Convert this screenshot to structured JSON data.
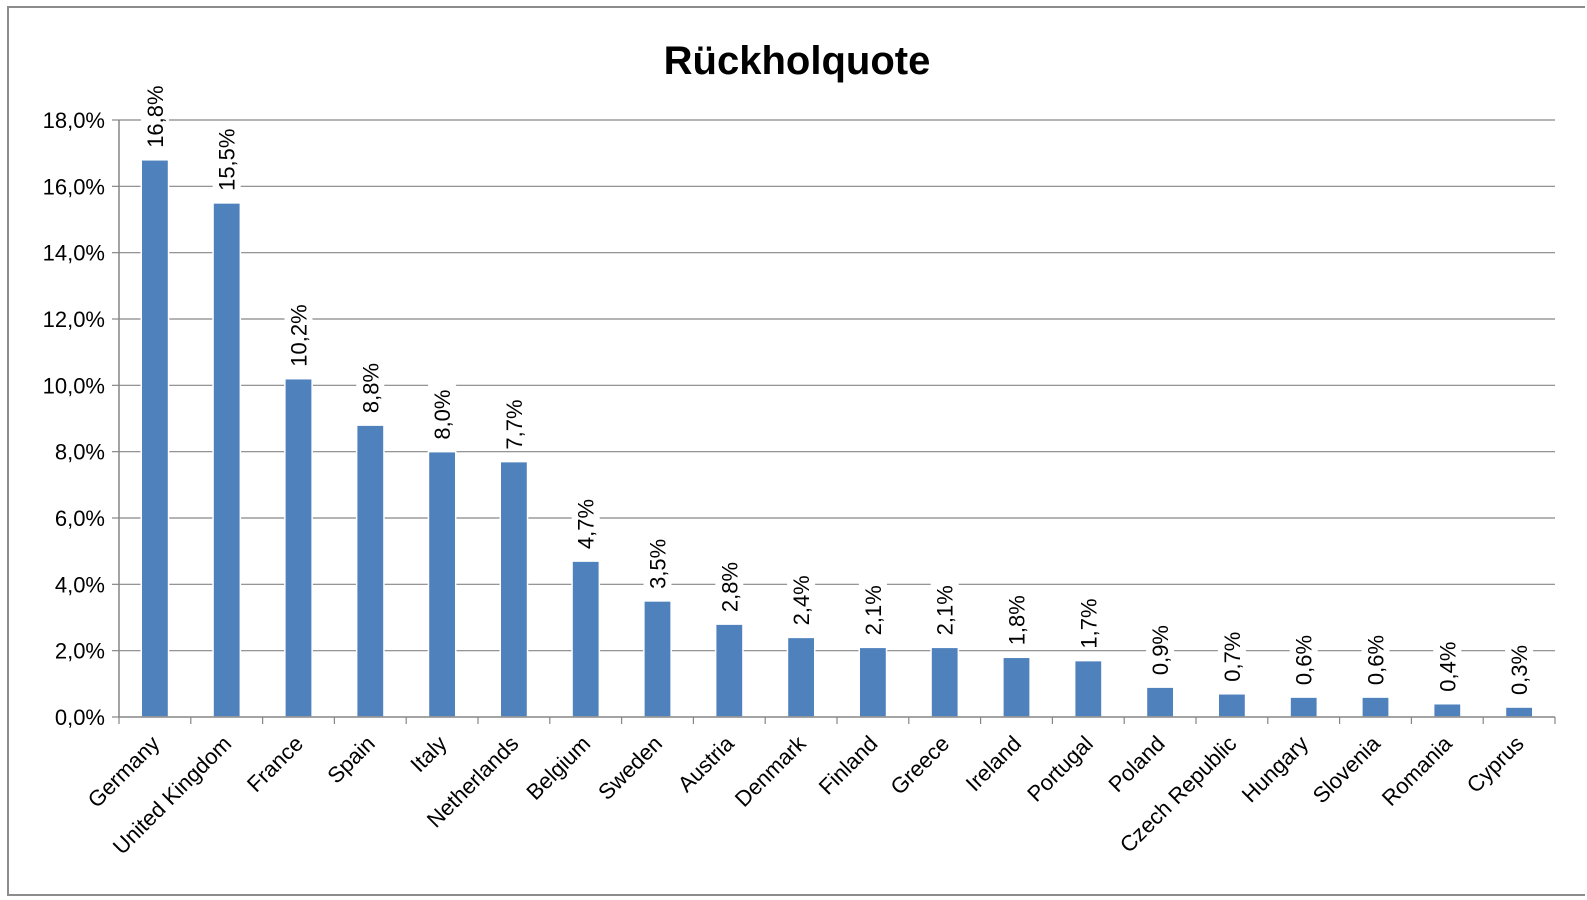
{
  "colors": {
    "bar_fill": "#4f81bd",
    "bar_edge": "#ffffff",
    "gridline": "#868686",
    "text": "#000000"
  },
  "chart_data": {
    "type": "bar",
    "title": "Rückholquote",
    "xlabel": "",
    "ylabel": "",
    "ylim": [
      0,
      18
    ],
    "yticks": [
      "0,0%",
      "2,0%",
      "4,0%",
      "6,0%",
      "8,0%",
      "10,0%",
      "12,0%",
      "14,0%",
      "16,0%",
      "18,0%"
    ],
    "grid": true,
    "legend": "none",
    "categories": [
      "Germany",
      "United Kingdom",
      "France",
      "Spain",
      "Italy",
      "Netherlands",
      "Belgium",
      "Sweden",
      "Austria",
      "Denmark",
      "Finland",
      "Greece",
      "Ireland",
      "Portugal",
      "Poland",
      "Czech Republic",
      "Hungary",
      "Slovenia",
      "Romania",
      "Cyprus"
    ],
    "values": [
      16.8,
      15.5,
      10.2,
      8.8,
      8.0,
      7.7,
      4.7,
      3.5,
      2.8,
      2.4,
      2.1,
      2.1,
      1.8,
      1.7,
      0.9,
      0.7,
      0.6,
      0.6,
      0.4,
      0.3
    ],
    "data_labels": [
      "16,8%",
      "15,5%",
      "10,2%",
      "8,8%",
      "8,0%",
      "7,7%",
      "4,7%",
      "3,5%",
      "2,8%",
      "2,4%",
      "2,1%",
      "2,1%",
      "1,8%",
      "1,7%",
      "0,9%",
      "0,7%",
      "0,6%",
      "0,6%",
      "0,4%",
      "0,3%"
    ]
  }
}
